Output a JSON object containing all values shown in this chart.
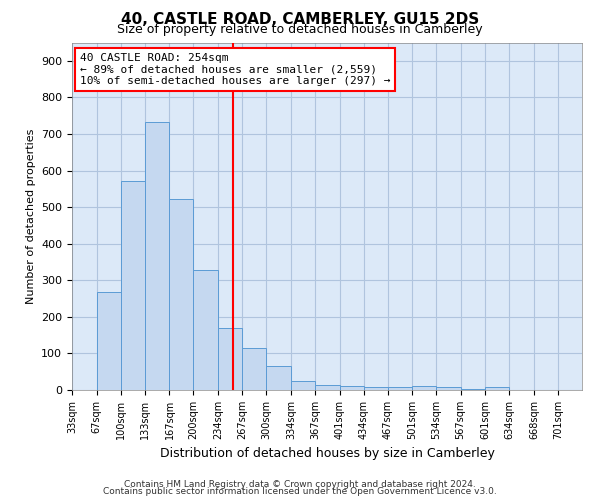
{
  "title": "40, CASTLE ROAD, CAMBERLEY, GU15 2DS",
  "subtitle": "Size of property relative to detached houses in Camberley",
  "xlabel": "Distribution of detached houses by size in Camberley",
  "ylabel": "Number of detached properties",
  "footer1": "Contains HM Land Registry data © Crown copyright and database right 2024.",
  "footer2": "Contains public sector information licensed under the Open Government Licence v3.0.",
  "annotation_line1": "40 CASTLE ROAD: 254sqm",
  "annotation_line2": "← 89% of detached houses are smaller (2,559)",
  "annotation_line3": "10% of semi-detached houses are larger (297) →",
  "vline_x": 254,
  "bins": [
    33,
    67,
    100,
    133,
    167,
    200,
    234,
    267,
    300,
    334,
    367,
    401,
    434,
    467,
    501,
    534,
    567,
    601,
    634,
    668,
    701
  ],
  "bar_heights": [
    0,
    268,
    572,
    733,
    522,
    328,
    170,
    115,
    65,
    25,
    15,
    12,
    8,
    8,
    10,
    8,
    3,
    8,
    0,
    0,
    0
  ],
  "bar_color": "#c5d8f0",
  "bar_edge_color": "#5b9bd5",
  "vline_color": "red",
  "grid_color": "#b0c4de",
  "background_color": "#dce9f8",
  "annotation_box_color": "#ffffff",
  "annotation_box_edge": "red",
  "ylim": [
    0,
    950
  ],
  "yticks": [
    0,
    100,
    200,
    300,
    400,
    500,
    600,
    700,
    800,
    900
  ],
  "bin_width": 33
}
